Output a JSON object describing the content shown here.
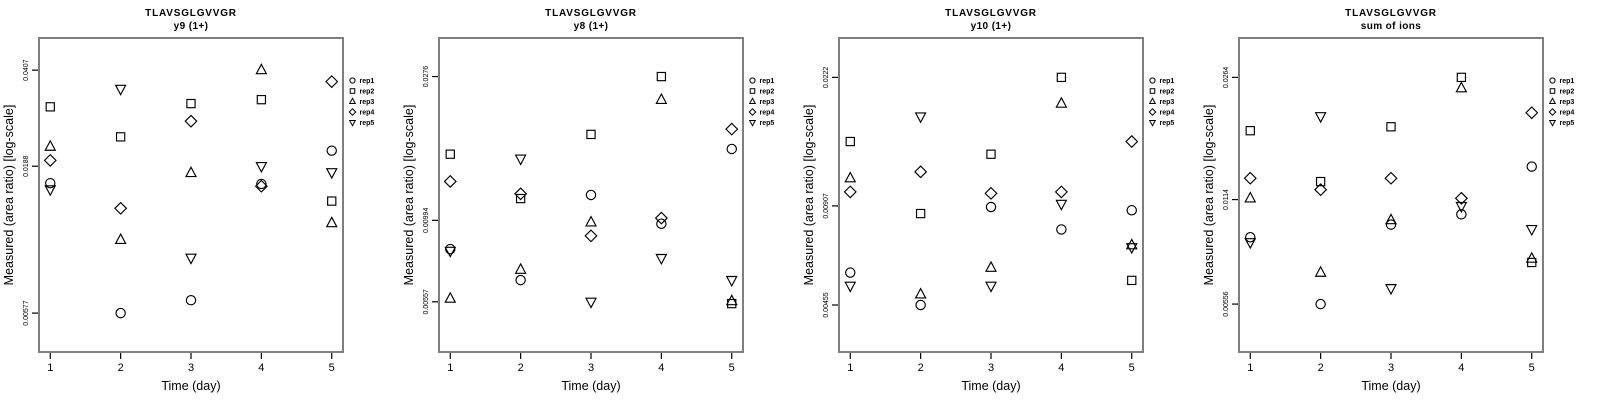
{
  "figure": {
    "peptide": "TLAVSGLGVVGR",
    "ylabel": "Measured (area ratio) [log-scale]",
    "xlabel": "Time (day)",
    "border_color": "#7f7f7f",
    "marker_color": "#000000",
    "background_color": "#ffffff"
  },
  "legend": {
    "position": "right-top",
    "items": [
      {
        "label": "rep1",
        "marker": "circle"
      },
      {
        "label": "rep2",
        "marker": "square"
      },
      {
        "label": "rep3",
        "marker": "triangle-up"
      },
      {
        "label": "rep4",
        "marker": "diamond"
      },
      {
        "label": "rep5",
        "marker": "triangle-down"
      }
    ]
  },
  "chart_data": [
    {
      "type": "scatter",
      "title": "TLAVSGLGVVGR",
      "subtitle": "y9 (1+)",
      "xlabel": "Time (day)",
      "ylabel": "Measured (area ratio) [log-scale]",
      "x_ticks": [
        1,
        2,
        3,
        4,
        5
      ],
      "xlim": [
        0.84,
        5.16
      ],
      "y_log": true,
      "ylim": [
        0.00422,
        0.0527
      ],
      "y_ticks": [
        {
          "value": 0.0407,
          "label": "0.0407"
        },
        {
          "value": 0.0188,
          "label": "0.0188"
        },
        {
          "value": 0.00577,
          "label": "0.00577"
        }
      ],
      "x": [
        1,
        2,
        3,
        4,
        5
      ],
      "series": [
        {
          "name": "rep1",
          "marker": "circle",
          "values": [
            0.0164,
            0.00577,
            0.0064,
            0.0163,
            0.0213
          ]
        },
        {
          "name": "rep2",
          "marker": "square",
          "values": [
            0.0303,
            0.0238,
            0.0311,
            0.0321,
            0.0142
          ]
        },
        {
          "name": "rep3",
          "marker": "triangle-up",
          "values": [
            0.022,
            0.0104,
            0.0178,
            0.0407,
            0.0119
          ]
        },
        {
          "name": "rep4",
          "marker": "diamond",
          "values": [
            0.0197,
            0.0134,
            0.027,
            0.016,
            0.0371
          ]
        },
        {
          "name": "rep5",
          "marker": "triangle-down",
          "values": [
            0.0156,
            0.035,
            0.009,
            0.0188,
            0.0179
          ]
        }
      ]
    },
    {
      "type": "scatter",
      "title": "TLAVSGLGVVGR",
      "subtitle": "y8 (1+)",
      "xlabel": "Time (day)",
      "ylabel": "Measured (area ratio) [log-scale]",
      "x_ticks": [
        1,
        2,
        3,
        4,
        5
      ],
      "xlim": [
        0.84,
        5.16
      ],
      "y_log": true,
      "ylim": [
        0.0039,
        0.0363
      ],
      "y_ticks": [
        {
          "value": 0.0276,
          "label": "0.0276"
        },
        {
          "value": 0.00994,
          "label": "0.00994"
        },
        {
          "value": 0.00557,
          "label": "0.00557"
        }
      ],
      "x": [
        1,
        2,
        3,
        4,
        5
      ],
      "series": [
        {
          "name": "rep1",
          "marker": "circle",
          "values": [
            0.0081,
            0.0065,
            0.0119,
            0.0097,
            0.0165
          ]
        },
        {
          "name": "rep2",
          "marker": "square",
          "values": [
            0.0159,
            0.0116,
            0.0183,
            0.0276,
            0.0055
          ]
        },
        {
          "name": "rep3",
          "marker": "triangle-up",
          "values": [
            0.0057,
            0.007,
            0.0098,
            0.0234,
            0.0056
          ]
        },
        {
          "name": "rep4",
          "marker": "diamond",
          "values": [
            0.0131,
            0.012,
            0.0089,
            0.0101,
            0.019
          ]
        },
        {
          "name": "rep5",
          "marker": "triangle-down",
          "values": [
            0.008,
            0.0154,
            0.00557,
            0.0076,
            0.0065
          ]
        }
      ]
    },
    {
      "type": "scatter",
      "title": "TLAVSGLGVVGR",
      "subtitle": "y10 (1+)",
      "xlabel": "Time (day)",
      "ylabel": "Measured (area ratio) [log-scale]",
      "x_ticks": [
        1,
        2,
        3,
        4,
        5
      ],
      "xlim": [
        0.84,
        5.16
      ],
      "y_log": true,
      "ylim": [
        0.00328,
        0.0292
      ],
      "y_ticks": [
        {
          "value": 0.0222,
          "label": "0.0222"
        },
        {
          "value": 0.00907,
          "label": "0.00907"
        },
        {
          "value": 0.00455,
          "label": "0.00455"
        }
      ],
      "x": [
        1,
        2,
        3,
        4,
        5
      ],
      "series": [
        {
          "name": "rep1",
          "marker": "circle",
          "values": [
            0.0057,
            0.00455,
            0.009,
            0.0077,
            0.0088
          ]
        },
        {
          "name": "rep2",
          "marker": "square",
          "values": [
            0.0142,
            0.0086,
            0.013,
            0.0222,
            0.0054
          ]
        },
        {
          "name": "rep3",
          "marker": "triangle-up",
          "values": [
            0.011,
            0.0049,
            0.0059,
            0.0185,
            0.0069
          ]
        },
        {
          "name": "rep4",
          "marker": "diamond",
          "values": [
            0.01,
            0.0115,
            0.0099,
            0.01,
            0.0142
          ]
        },
        {
          "name": "rep5",
          "marker": "triangle-down",
          "values": [
            0.0052,
            0.0169,
            0.0052,
            0.0092,
            0.0068
          ]
        }
      ]
    },
    {
      "type": "scatter",
      "title": "TLAVSGLGVVGR",
      "subtitle": "sum of ions",
      "xlabel": "Time (day)",
      "ylabel": "Measured (area ratio) [log-scale]",
      "x_ticks": [
        1,
        2,
        3,
        4,
        5
      ],
      "xlim": [
        0.84,
        5.16
      ],
      "y_log": true,
      "ylim": [
        0.004,
        0.0346
      ],
      "y_ticks": [
        {
          "value": 0.0264,
          "label": "0.0264"
        },
        {
          "value": 0.0114,
          "label": "0.0114"
        },
        {
          "value": 0.00556,
          "label": "0.00556"
        }
      ],
      "x": [
        1,
        2,
        3,
        4,
        5
      ],
      "series": [
        {
          "name": "rep1",
          "marker": "circle",
          "values": [
            0.0088,
            0.00556,
            0.0096,
            0.0103,
            0.0143
          ]
        },
        {
          "name": "rep2",
          "marker": "square",
          "values": [
            0.0183,
            0.0129,
            0.0188,
            0.0264,
            0.0074
          ]
        },
        {
          "name": "rep3",
          "marker": "triangle-up",
          "values": [
            0.0115,
            0.0069,
            0.0099,
            0.0245,
            0.0076
          ]
        },
        {
          "name": "rep4",
          "marker": "diamond",
          "values": [
            0.0132,
            0.0122,
            0.0132,
            0.0115,
            0.0207
          ]
        },
        {
          "name": "rep5",
          "marker": "triangle-down",
          "values": [
            0.0085,
            0.0202,
            0.0062,
            0.0109,
            0.0093
          ]
        }
      ]
    }
  ]
}
